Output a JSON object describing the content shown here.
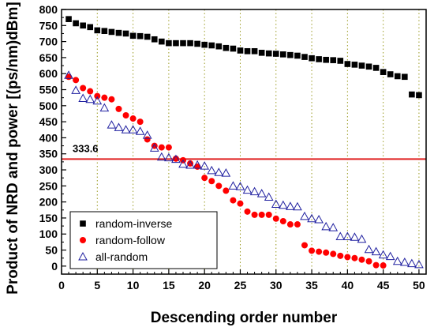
{
  "chart_data": {
    "type": "scatter",
    "xlabel": "Descending order number",
    "ylabel": "Product of NRD and power [(ps/nm)dBm]",
    "xlim": [
      0,
      51
    ],
    "ylim": [
      -25,
      800
    ],
    "xticks": [
      0,
      5,
      10,
      15,
      20,
      25,
      30,
      35,
      40,
      45,
      50
    ],
    "yticks": [
      0,
      50,
      100,
      150,
      200,
      250,
      300,
      350,
      400,
      450,
      500,
      550,
      600,
      650,
      700,
      750,
      800
    ],
    "grid": "vertical dotted olive lines at every 5",
    "legend_position": "bottom-left",
    "reference_line": {
      "y": 333.6,
      "label": "333.6",
      "color": "#e02020"
    },
    "series": [
      {
        "name": "random-inverse",
        "marker": "filled-square",
        "color": "#000000",
        "x": [
          1,
          2,
          3,
          4,
          5,
          6,
          7,
          8,
          9,
          10,
          11,
          12,
          13,
          14,
          15,
          16,
          17,
          18,
          19,
          20,
          21,
          22,
          23,
          24,
          25,
          26,
          27,
          28,
          29,
          30,
          31,
          32,
          33,
          34,
          35,
          36,
          37,
          38,
          39,
          40,
          41,
          42,
          43,
          44,
          45,
          46,
          47,
          48,
          49,
          50
        ],
        "y": [
          770,
          757,
          750,
          745,
          735,
          733,
          730,
          727,
          725,
          718,
          717,
          715,
          707,
          700,
          695,
          695,
          695,
          695,
          693,
          690,
          688,
          685,
          680,
          678,
          672,
          670,
          670,
          665,
          663,
          662,
          660,
          658,
          656,
          652,
          648,
          645,
          643,
          642,
          640,
          630,
          628,
          625,
          622,
          618,
          605,
          598,
          592,
          590,
          535,
          533
        ]
      },
      {
        "name": "random-follow",
        "marker": "filled-circle",
        "color": "#ff0000",
        "x": [
          1,
          2,
          3,
          4,
          5,
          6,
          7,
          8,
          9,
          10,
          11,
          12,
          13,
          14,
          15,
          16,
          17,
          18,
          19,
          20,
          21,
          22,
          23,
          24,
          25,
          26,
          27,
          28,
          29,
          30,
          31,
          32,
          33,
          34,
          35,
          36,
          37,
          38,
          39,
          40,
          41,
          42,
          43,
          44,
          45
        ],
        "y": [
          590,
          580,
          555,
          545,
          530,
          525,
          520,
          490,
          470,
          460,
          450,
          395,
          375,
          370,
          370,
          335,
          330,
          320,
          310,
          275,
          265,
          250,
          235,
          205,
          195,
          170,
          160,
          160,
          160,
          148,
          140,
          130,
          130,
          65,
          48,
          45,
          42,
          38,
          32,
          28,
          25,
          20,
          15,
          3,
          2
        ]
      },
      {
        "name": "all-random",
        "marker": "open-triangle",
        "color": "#2020a0",
        "x": [
          1,
          2,
          3,
          4,
          5,
          6,
          7,
          8,
          9,
          10,
          11,
          12,
          13,
          14,
          15,
          16,
          17,
          18,
          19,
          20,
          21,
          22,
          23,
          24,
          25,
          26,
          27,
          28,
          29,
          30,
          31,
          32,
          33,
          34,
          35,
          36,
          37,
          38,
          39,
          40,
          41,
          42,
          43,
          44,
          45,
          46,
          47,
          48,
          49,
          50
        ],
        "y": [
          595,
          548,
          523,
          520,
          515,
          493,
          440,
          432,
          425,
          425,
          420,
          408,
          368,
          340,
          338,
          333,
          318,
          315,
          315,
          312,
          298,
          292,
          290,
          250,
          248,
          237,
          232,
          226,
          215,
          193,
          190,
          186,
          185,
          155,
          148,
          145,
          123,
          120,
          92,
          92,
          90,
          84,
          52,
          45,
          35,
          30,
          15,
          12,
          8,
          5
        ]
      }
    ]
  }
}
